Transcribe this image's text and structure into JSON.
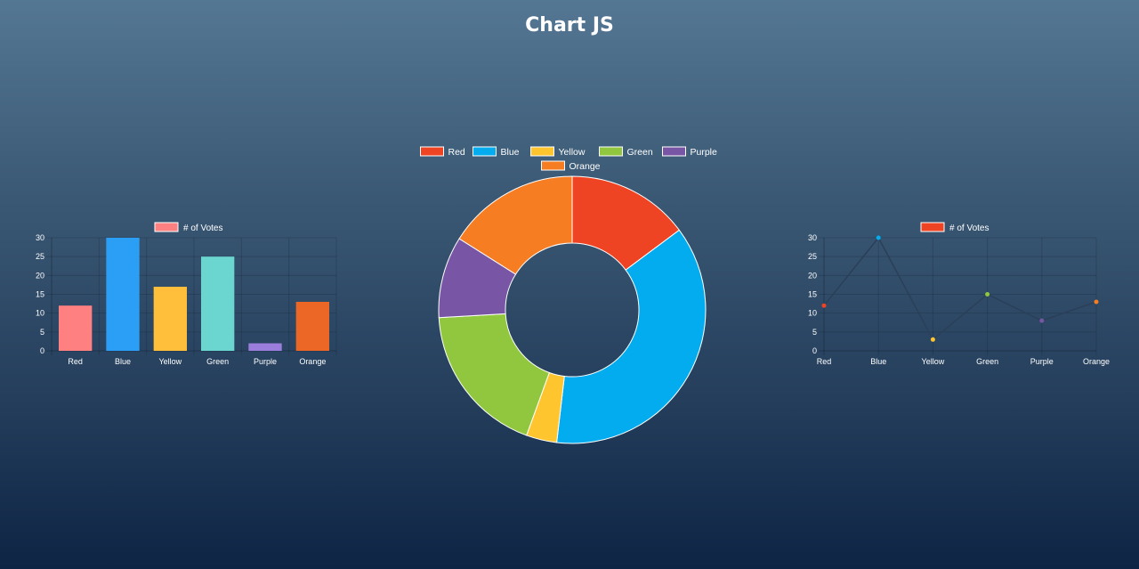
{
  "page": {
    "title": "Chart JS"
  },
  "chart_data": [
    {
      "type": "bar",
      "categories": [
        "Red",
        "Blue",
        "Yellow",
        "Green",
        "Purple",
        "Orange"
      ],
      "series": [
        {
          "name": "# of Votes",
          "values": [
            12,
            30,
            17,
            25,
            2,
            13
          ]
        }
      ],
      "ylim": [
        0,
        30
      ],
      "yticks": [
        0,
        5,
        10,
        15,
        20,
        25,
        30
      ],
      "legend_position": "top",
      "grid": true,
      "colors": [
        "#ff8080",
        "#2b9ff5",
        "#ffbf3a",
        "#6bd6cf",
        "#9b7ddc",
        "#ec6625"
      ],
      "legend_color": "#ff8080"
    },
    {
      "type": "pie",
      "style": "doughnut",
      "categories": [
        "Red",
        "Blue",
        "Yellow",
        "Green",
        "Purple",
        "Orange"
      ],
      "values": [
        12,
        30,
        3,
        15,
        8,
        13
      ],
      "legend_position": "top",
      "colors": [
        "#ef4423",
        "#02acee",
        "#ffc52f",
        "#91c73e",
        "#7856a5",
        "#f77d22"
      ]
    },
    {
      "type": "line",
      "categories": [
        "Red",
        "Blue",
        "Yellow",
        "Green",
        "Purple",
        "Orange"
      ],
      "series": [
        {
          "name": "# of Votes",
          "values": [
            12,
            30,
            3,
            15,
            8,
            13
          ]
        }
      ],
      "ylim": [
        0,
        30
      ],
      "yticks": [
        0,
        5,
        10,
        15,
        20,
        25,
        30
      ],
      "legend_position": "top",
      "grid": true,
      "line_color": "#2b3f58",
      "point_colors": [
        "#ef4423",
        "#02acee",
        "#ffc52f",
        "#91c73e",
        "#7856a5",
        "#f77d22"
      ],
      "legend_color": "#ef4423"
    }
  ]
}
